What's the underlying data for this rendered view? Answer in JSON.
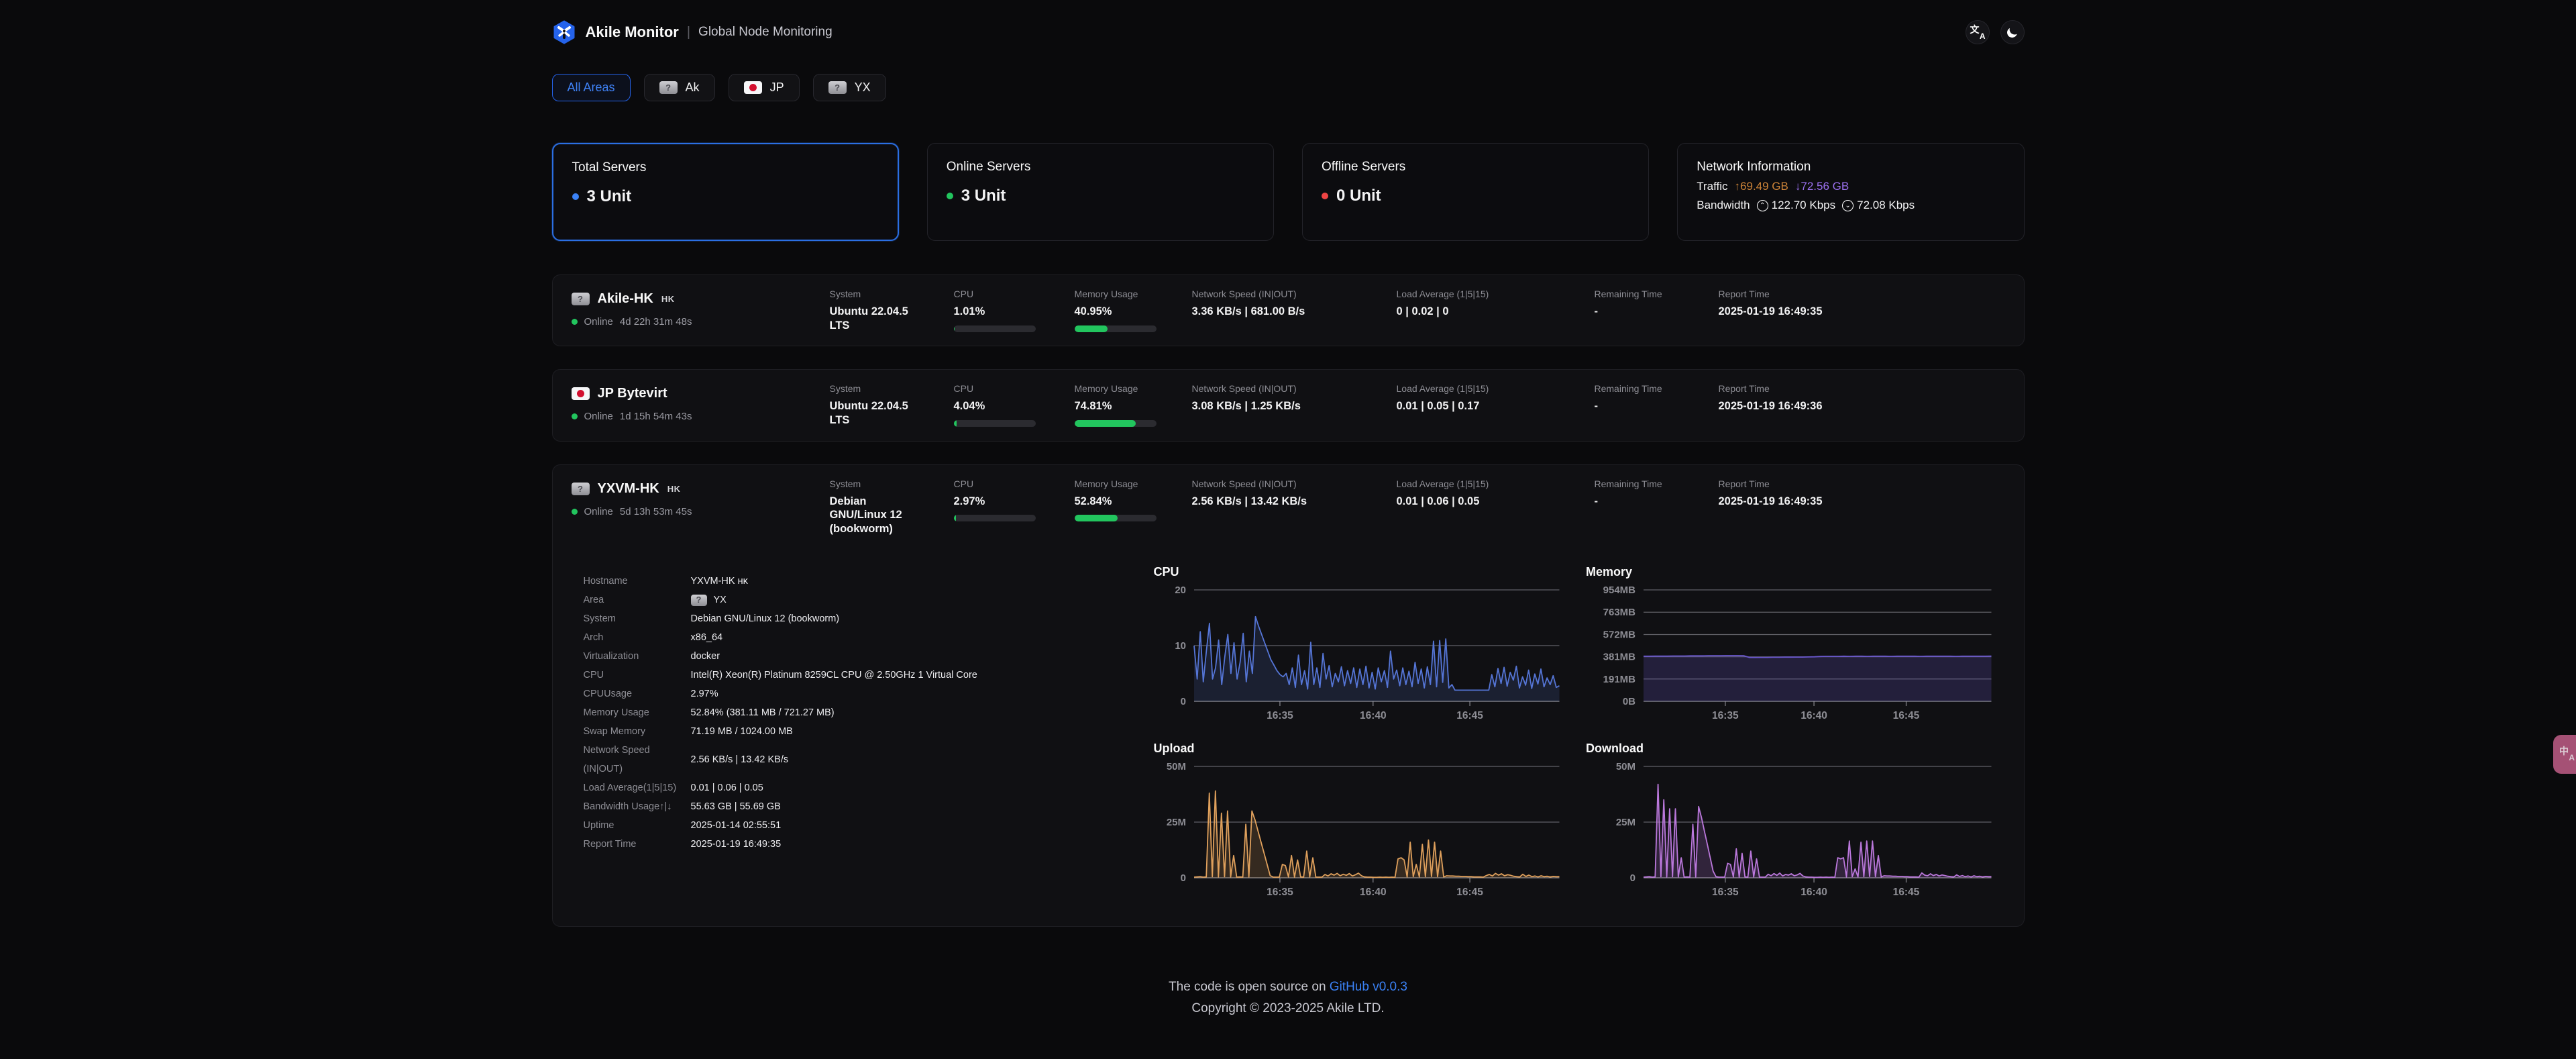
{
  "header": {
    "brand": "Akile Monitor",
    "separator": "|",
    "subtitle": "Global Node Monitoring"
  },
  "filters": [
    {
      "label": "All Areas",
      "active": true,
      "flag": "none"
    },
    {
      "label": "Ak",
      "active": false,
      "flag": "q"
    },
    {
      "label": "JP",
      "active": false,
      "flag": "jp"
    },
    {
      "label": "YX",
      "active": false,
      "flag": "q"
    }
  ],
  "stats": {
    "total": {
      "title": "Total Servers",
      "value": "3 Unit",
      "dot_color": "#3b82f6"
    },
    "online": {
      "title": "Online Servers",
      "value": "3 Unit",
      "dot_color": "#22c55e"
    },
    "offline": {
      "title": "Offline Servers",
      "value": "0 Unit",
      "dot_color": "#ef4444"
    },
    "network": {
      "title": "Network Information",
      "traffic_label": "Traffic",
      "traffic_up": "↑69.49 GB",
      "traffic_down": "↓72.56 GB",
      "bandwidth_label": "Bandwidth",
      "bandwidth_up": "122.70 Kbps",
      "bandwidth_down": "72.08 Kbps",
      "up_color": "#cd8438",
      "down_color": "#9a70ee"
    }
  },
  "columns": {
    "system": "System",
    "cpu": "CPU",
    "memory": "Memory Usage",
    "network": "Network Speed (IN|OUT)",
    "load": "Load Average (1|5|15)",
    "remaining": "Remaining Time",
    "report": "Report Time"
  },
  "servers": [
    {
      "name": "Akile-HK",
      "suffix": "HK",
      "flag": "q",
      "status": "Online",
      "uptime": "4d 22h 31m 48s",
      "system": "Ubuntu 22.04.5 LTS",
      "cpu": "1.01%",
      "cpu_pct": 1.01,
      "mem": "40.95%",
      "mem_pct": 40.95,
      "net": "3.36 KB/s | 681.00 B/s",
      "load": "0 | 0.02 | 0",
      "remaining": "-",
      "report": "2025-01-19 16:49:35"
    },
    {
      "name": "JP Bytevirt",
      "suffix": "",
      "flag": "jp",
      "status": "Online",
      "uptime": "1d 15h 54m 43s",
      "system": "Ubuntu 22.04.5 LTS",
      "cpu": "4.04%",
      "cpu_pct": 4.04,
      "mem": "74.81%",
      "mem_pct": 74.81,
      "net": "3.08 KB/s | 1.25 KB/s",
      "load": "0.01 | 0.05 | 0.17",
      "remaining": "-",
      "report": "2025-01-19 16:49:36"
    },
    {
      "name": "YXVM-HK",
      "suffix": "HK",
      "flag": "q",
      "status": "Online",
      "uptime": "5d 13h 53m 45s",
      "system": "Debian GNU/Linux 12 (bookworm)",
      "cpu": "2.97%",
      "cpu_pct": 2.97,
      "mem": "52.84%",
      "mem_pct": 52.84,
      "net": "2.56 KB/s | 13.42 KB/s",
      "load": "0.01 | 0.06 | 0.05",
      "remaining": "-",
      "report": "2025-01-19 16:49:35"
    }
  ],
  "detail": {
    "expanded_row": 2,
    "rows": [
      {
        "label": "Hostname",
        "value": "YXVM-HK ʜᴋ"
      },
      {
        "label": "Area",
        "value": "YX",
        "flag": "q"
      },
      {
        "label": "System",
        "value": "Debian GNU/Linux 12 (bookworm)"
      },
      {
        "label": "Arch",
        "value": "x86_64"
      },
      {
        "label": "Virtualization",
        "value": "docker"
      },
      {
        "label": "CPU",
        "value": "Intel(R) Xeon(R) Platinum 8259CL CPU @ 2.50GHz 1 Virtual Core"
      },
      {
        "label": "CPUUsage",
        "value": "2.97%"
      },
      {
        "label": "Memory Usage",
        "value": "52.84% (381.11 MB / 721.27 MB)"
      },
      {
        "label": "Swap Memory",
        "value": "71.19 MB / 1024.00 MB"
      },
      {
        "label": "Network Speed  (IN|OUT)",
        "value": "2.56 KB/s | 13.42 KB/s"
      },
      {
        "label": "Load Average(1|5|15)",
        "value": "0.01 | 0.06 | 0.05"
      },
      {
        "label": "Bandwidth Usage↑|↓",
        "value": "55.63 GB | 55.69 GB"
      },
      {
        "label": "Uptime",
        "value": "2025-01-14 02:55:51"
      },
      {
        "label": "Report Time",
        "value": "2025-01-19 16:49:35"
      }
    ]
  },
  "chart_data": [
    {
      "type": "area",
      "title": "CPU",
      "ylabel": "percent",
      "ylim": [
        0,
        20
      ],
      "left": 60,
      "color": "#5575d6",
      "fill": "rgba(85,117,214,0.16)",
      "yticks": [
        {
          "v": 0,
          "label": "0"
        },
        {
          "v": 10,
          "label": "10"
        },
        {
          "v": 20,
          "label": "20"
        }
      ],
      "xticks": [
        {
          "pos": 0.235,
          "label": "16:35"
        },
        {
          "pos": 0.49,
          "label": "16:40"
        },
        {
          "pos": 0.755,
          "label": "16:45"
        }
      ],
      "values": [
        10,
        4,
        12.5,
        3.5,
        9,
        14,
        4,
        6,
        11,
        3,
        8,
        12,
        5,
        10.5,
        4,
        7,
        12.2,
        3.5,
        9,
        5,
        15.2,
        13.5,
        12,
        10.5,
        9,
        7.5,
        6.5,
        5.5,
        4.8,
        4.4,
        5,
        3,
        6,
        2.5,
        8.3,
        3,
        5.5,
        2.2,
        10.6,
        3,
        6,
        2.5,
        8.6,
        4,
        6.4,
        2.6,
        5,
        3.5,
        6.2,
        2.8,
        5.5,
        3.2,
        6,
        2.5,
        5.8,
        3,
        6.3,
        2.4,
        5.2,
        2.2,
        6,
        3.5,
        5.5,
        2.5,
        9,
        4,
        5.6,
        2.8,
        6,
        3,
        5.4,
        2.6,
        7,
        3.2,
        5.8,
        2.4,
        6.2,
        3,
        10.8,
        2.6,
        10.9,
        3.4,
        11.2,
        2.4,
        3,
        2,
        2,
        2,
        2,
        2,
        2,
        2,
        2,
        2,
        2,
        2,
        2,
        4.8,
        2.6,
        5.9,
        3.2,
        6.1,
        2.7,
        5.2,
        3.8,
        6.3,
        2.4,
        4.4,
        2.9,
        5.6,
        2.3,
        4.9,
        3.1,
        5.8,
        2.6,
        4.2,
        3,
        4.6,
        2.5,
        2.8
      ]
    },
    {
      "type": "area",
      "title": "Memory",
      "ylabel": "MB",
      "ylim": [
        0,
        954
      ],
      "left": 86,
      "color": "#6a58cf",
      "fill": "rgba(106,88,207,0.22)",
      "yticks": [
        {
          "v": 0,
          "label": "0B"
        },
        {
          "v": 191,
          "label": "191MB"
        },
        {
          "v": 381,
          "label": "381MB"
        },
        {
          "v": 572,
          "label": "572MB"
        },
        {
          "v": 763,
          "label": "763MB"
        },
        {
          "v": 954,
          "label": "954MB"
        }
      ],
      "xticks": [
        {
          "pos": 0.235,
          "label": "16:35"
        },
        {
          "pos": 0.49,
          "label": "16:40"
        },
        {
          "pos": 0.755,
          "label": "16:45"
        }
      ],
      "values": [
        386,
        386,
        387,
        387,
        387,
        388,
        388,
        388,
        389,
        389,
        389,
        390,
        390,
        390,
        391,
        391,
        391,
        390,
        375,
        375,
        376,
        376,
        377,
        377,
        378,
        378,
        379,
        379,
        380,
        381,
        384,
        385,
        385,
        385,
        386,
        385,
        386,
        386,
        385,
        386,
        386,
        386,
        385,
        386,
        386,
        386,
        386,
        385,
        386,
        386,
        386,
        386,
        386,
        385,
        386,
        386,
        386,
        386,
        386,
        387
      ]
    },
    {
      "type": "area",
      "title": "Upload",
      "ylabel": "bytes/s",
      "ylim": [
        0,
        50
      ],
      "left": 60,
      "color": "#dfa05c",
      "fill": "rgba(223,160,92,0.18)",
      "yticks": [
        {
          "v": 0,
          "label": "0"
        },
        {
          "v": 25,
          "label": "25M"
        },
        {
          "v": 50,
          "label": "50M"
        }
      ],
      "xticks": [
        {
          "pos": 0.235,
          "label": "16:35"
        },
        {
          "pos": 0.49,
          "label": "16:40"
        },
        {
          "pos": 0.755,
          "label": "16:45"
        }
      ],
      "values": [
        0.3,
        0.4,
        0.5,
        0.3,
        0.4,
        38,
        0.5,
        39,
        0.4,
        29,
        0.5,
        30,
        0.4,
        10,
        0.3,
        0.4,
        0.3,
        24,
        0.4,
        30,
        26,
        21,
        16,
        11,
        6,
        1,
        0.3,
        0.3,
        0.3,
        6,
        5.5,
        0.4,
        10,
        0.3,
        8,
        0.4,
        0.3,
        12,
        0.4,
        9,
        0.3,
        0.3,
        0.3,
        1.5,
        0.8,
        1.8,
        1.2,
        2,
        0.9,
        1.6,
        1.1,
        1.9,
        0.8,
        1.4,
        2.1,
        0.9,
        0.4,
        0.3,
        0.3,
        0.2,
        0.2,
        0.3,
        0.2,
        0.3,
        0.2,
        0.3,
        0.2,
        8.5,
        9,
        8,
        0.4,
        16,
        0.5,
        6,
        0.4,
        15,
        0.5,
        17,
        0.6,
        16,
        0.5,
        12,
        0.4,
        0.9,
        0.8,
        0.8,
        0.7,
        0.7,
        0.6,
        0.6,
        0.5,
        0.5,
        0.4,
        0.4,
        0.4,
        0.3,
        1,
        1.5,
        0.8,
        2,
        1.2,
        1.8,
        0.9,
        1.4,
        1.1,
        0.7,
        0.5,
        0.4,
        1.6,
        0.6,
        1.2,
        0.5,
        0.8,
        0.4,
        0.9,
        0.5,
        0.7,
        0.4,
        0.6,
        0.5,
        0.5
      ]
    },
    {
      "type": "area",
      "title": "Download",
      "ylabel": "bytes/s",
      "ylim": [
        0,
        50
      ],
      "left": 86,
      "color": "#bb78dc",
      "fill": "rgba(187,120,220,0.2)",
      "yticks": [
        {
          "v": 0,
          "label": "0"
        },
        {
          "v": 25,
          "label": "25M"
        },
        {
          "v": 50,
          "label": "50M"
        }
      ],
      "xticks": [
        {
          "pos": 0.235,
          "label": "16:35"
        },
        {
          "pos": 0.49,
          "label": "16:40"
        },
        {
          "pos": 0.755,
          "label": "16:45"
        }
      ],
      "values": [
        0.3,
        0.4,
        0.5,
        0.3,
        0.4,
        42,
        0.5,
        35,
        0.4,
        31,
        0.5,
        31,
        0.4,
        9,
        0.3,
        0.4,
        0.3,
        24,
        0.4,
        32,
        27,
        21,
        15,
        9,
        3,
        0.5,
        0.3,
        0.3,
        0.3,
        6.5,
        6,
        0.4,
        13,
        0.3,
        11,
        0.4,
        0.3,
        12,
        0.4,
        8.5,
        0.3,
        0.3,
        0.3,
        1.6,
        0.9,
        1.9,
        1.1,
        2.1,
        0.8,
        1.5,
        1.2,
        1.8,
        0.9,
        1.3,
        2,
        0.8,
        0.4,
        0.3,
        0.3,
        0.2,
        0.2,
        0.3,
        0.2,
        0.3,
        0.2,
        0.3,
        0.2,
        9,
        8.5,
        9,
        0.4,
        16.5,
        0.5,
        4,
        0.4,
        16,
        0.5,
        16.5,
        0.6,
        16.5,
        0.5,
        10,
        0.4,
        0.9,
        0.8,
        0.8,
        0.7,
        0.7,
        0.6,
        0.6,
        0.5,
        0.5,
        0.4,
        0.4,
        0.4,
        0.3,
        2.2,
        1.2,
        0.9,
        1.8,
        1,
        1.5,
        0.8,
        1.3,
        1,
        0.7,
        0.5,
        0.4,
        1.3,
        0.6,
        1,
        0.5,
        0.8,
        0.4,
        0.9,
        0.5,
        0.7,
        0.4,
        0.6,
        0.5,
        0.5
      ]
    }
  ],
  "footer": {
    "line1_prefix": "The code is open source on ",
    "link": "GitHub v0.0.3",
    "line2": "Copyright © 2023-2025 Akile LTD."
  }
}
